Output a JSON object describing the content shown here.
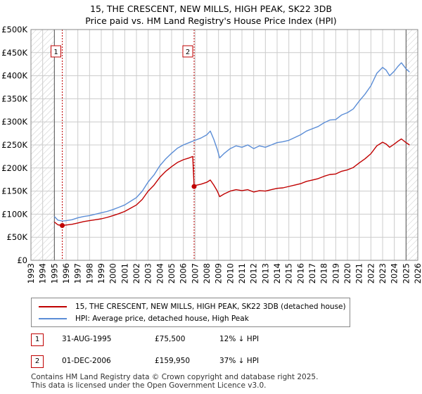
{
  "title_line1": "15, THE CRESCENT, NEW MILLS, HIGH PEAK, SK22 3DB",
  "title_line2": "Price paid vs. HM Land Registry's House Price Index (HPI)",
  "colors": {
    "red": "#c00000",
    "blue": "#5b8dd6",
    "grid": "#cccccc",
    "hatch": "#dddddd",
    "bg": "#ffffff"
  },
  "chart_data": {
    "type": "line",
    "xlim": [
      1993,
      2026
    ],
    "ylim": [
      0,
      500000
    ],
    "y_ticks": [
      0,
      50000,
      100000,
      150000,
      200000,
      250000,
      300000,
      350000,
      400000,
      450000,
      500000
    ],
    "y_tick_labels": [
      "£0",
      "£50K",
      "£100K",
      "£150K",
      "£200K",
      "£250K",
      "£300K",
      "£350K",
      "£400K",
      "£450K",
      "£500K"
    ],
    "x_ticks": [
      1993,
      1994,
      1995,
      1996,
      1997,
      1998,
      1999,
      2000,
      2001,
      2002,
      2003,
      2004,
      2005,
      2006,
      2007,
      2008,
      2009,
      2010,
      2011,
      2012,
      2013,
      2014,
      2015,
      2016,
      2017,
      2018,
      2019,
      2020,
      2021,
      2022,
      2023,
      2024,
      2025,
      2026
    ],
    "x_tick_labels": [
      "1993",
      "1994",
      "1995",
      "1996",
      "1997",
      "1998",
      "1999",
      "2000",
      "2001",
      "2002",
      "2003",
      "2004",
      "2005",
      "2006",
      "2007",
      "2008",
      "2009",
      "2010",
      "2011",
      "2012",
      "2013",
      "2014",
      "2015",
      "2016",
      "2017",
      "2018",
      "2019",
      "2020",
      "2021",
      "2022",
      "2023",
      "2024",
      "2025",
      "2026"
    ],
    "hatched_regions": [
      [
        1993,
        1995.0
      ],
      [
        2025.0,
        2026
      ]
    ],
    "series": [
      {
        "name": "HPI: Average price, detached house, High Peak",
        "color": "#5b8dd6",
        "x": [
          1995.0,
          1995.3,
          1995.7,
          1996.0,
          1996.5,
          1997.0,
          1997.5,
          1998.0,
          1998.5,
          1999.0,
          1999.5,
          2000.0,
          2000.5,
          2001.0,
          2001.5,
          2002.0,
          2002.5,
          2003.0,
          2003.5,
          2004.0,
          2004.5,
          2005.0,
          2005.5,
          2006.0,
          2006.5,
          2007.0,
          2007.5,
          2008.0,
          2008.3,
          2008.6,
          2008.9,
          2009.1,
          2009.5,
          2010.0,
          2010.5,
          2011.0,
          2011.5,
          2012.0,
          2012.5,
          2013.0,
          2013.5,
          2014.0,
          2014.5,
          2015.0,
          2015.5,
          2016.0,
          2016.5,
          2017.0,
          2017.5,
          2018.0,
          2018.5,
          2019.0,
          2019.5,
          2020.0,
          2020.5,
          2021.0,
          2021.5,
          2022.0,
          2022.5,
          2023.0,
          2023.3,
          2023.6,
          2024.0,
          2024.3,
          2024.6,
          2025.0,
          2025.3
        ],
        "values": [
          95000,
          87000,
          85000,
          86000,
          88000,
          92000,
          95000,
          97000,
          100000,
          103000,
          106000,
          110000,
          115000,
          120000,
          128000,
          136000,
          150000,
          170000,
          185000,
          205000,
          220000,
          232000,
          243000,
          250000,
          255000,
          260000,
          265000,
          272000,
          280000,
          262000,
          240000,
          222000,
          232000,
          242000,
          248000,
          245000,
          250000,
          242000,
          248000,
          245000,
          250000,
          255000,
          257000,
          260000,
          266000,
          272000,
          280000,
          285000,
          290000,
          298000,
          304000,
          305000,
          315000,
          320000,
          328000,
          345000,
          360000,
          378000,
          405000,
          418000,
          412000,
          400000,
          410000,
          420000,
          428000,
          415000,
          408000
        ]
      },
      {
        "name": "15, THE CRESCENT, NEW MILLS, HIGH PEAK, SK22 3DB (detached house)",
        "color": "#c00000",
        "x": [
          1995.0,
          1995.3,
          1995.67,
          1996.0,
          1996.5,
          1997.0,
          1997.5,
          1998.0,
          1998.5,
          1999.0,
          1999.5,
          2000.0,
          2000.5,
          2001.0,
          2001.5,
          2002.0,
          2002.5,
          2003.0,
          2003.5,
          2004.0,
          2004.5,
          2005.0,
          2005.5,
          2006.0,
          2006.5,
          2006.8,
          2006.92,
          2007.0,
          2007.5,
          2008.0,
          2008.3,
          2008.6,
          2008.9,
          2009.1,
          2009.5,
          2010.0,
          2010.5,
          2011.0,
          2011.5,
          2012.0,
          2012.5,
          2013.0,
          2013.5,
          2014.0,
          2014.5,
          2015.0,
          2015.5,
          2016.0,
          2016.5,
          2017.0,
          2017.5,
          2018.0,
          2018.5,
          2019.0,
          2019.5,
          2020.0,
          2020.5,
          2021.0,
          2021.5,
          2022.0,
          2022.5,
          2023.0,
          2023.3,
          2023.6,
          2024.0,
          2024.3,
          2024.6,
          2025.0,
          2025.3
        ],
        "values": [
          83000,
          77000,
          75500,
          76500,
          78000,
          81000,
          84000,
          86000,
          88000,
          90000,
          93000,
          97000,
          101000,
          106000,
          113000,
          120000,
          132000,
          150000,
          163000,
          180000,
          193000,
          203000,
          212000,
          218000,
          222000,
          225000,
          159950,
          162000,
          165000,
          169000,
          174000,
          163000,
          150000,
          138000,
          144000,
          150000,
          153000,
          151000,
          153000,
          148000,
          151000,
          150000,
          153000,
          156000,
          157000,
          160000,
          163000,
          166000,
          171000,
          174000,
          177000,
          182000,
          186000,
          187000,
          193000,
          196000,
          201000,
          211000,
          220000,
          231000,
          248000,
          256000,
          252000,
          245000,
          252000,
          258000,
          263000,
          255000,
          250000
        ]
      }
    ],
    "sales": [
      {
        "label": "1",
        "date": "31-AUG-1995",
        "x": 1995.67,
        "price": 75500
      },
      {
        "label": "2",
        "date": "01-DEC-2006",
        "x": 2006.92,
        "price": 159950
      }
    ]
  },
  "legend": {
    "property": "15, THE CRESCENT, NEW MILLS, HIGH PEAK, SK22 3DB (detached house)",
    "hpi": "HPI: Average price, detached house, High Peak"
  },
  "transactions": [
    {
      "num": "1",
      "date": "31-AUG-1995",
      "price": "£75,500",
      "hpi": "12% ↓ HPI"
    },
    {
      "num": "2",
      "date": "01-DEC-2006",
      "price": "£159,950",
      "hpi": "37% ↓ HPI"
    }
  ],
  "footer": {
    "line1": "Contains HM Land Registry data © Crown copyright and database right 2025.",
    "line2": "This data is licensed under the Open Government Licence v3.0."
  }
}
